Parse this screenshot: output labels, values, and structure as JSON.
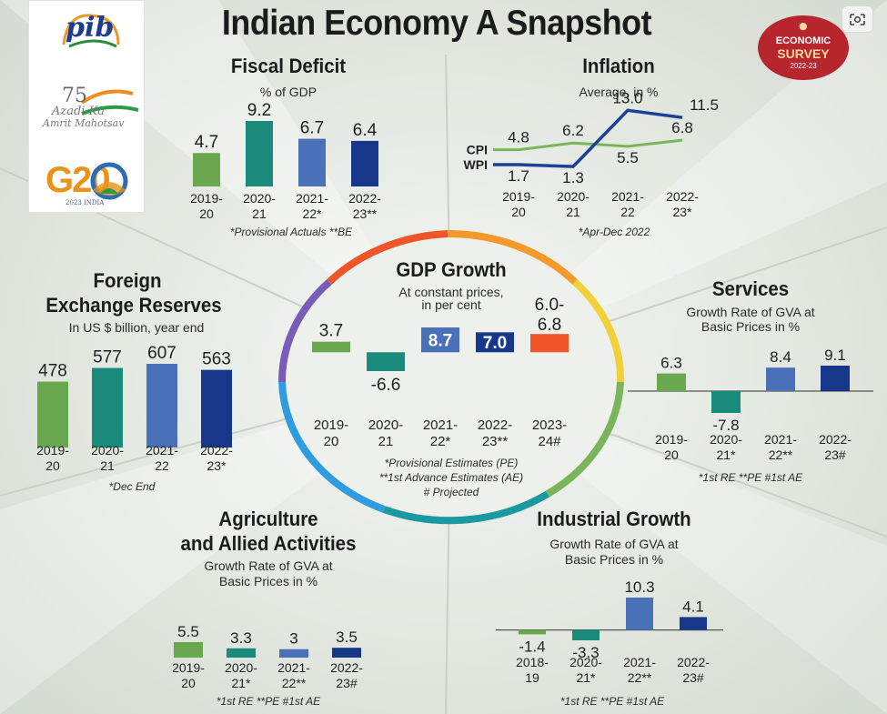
{
  "main_title": "Indian Economy A Snapshot",
  "logos": {
    "pib": "pib",
    "azadi_number": "75",
    "azadi_line1": "Azadi Ka",
    "azadi_line2": "Amrit Mahotsav",
    "g20": "G20",
    "g20_sub": "2023 INDIA"
  },
  "badge": {
    "line1": "ECONOMIC",
    "line2": "SURVEY",
    "line3": "2022-23"
  },
  "colors": {
    "green": "#6aa84f",
    "teal": "#1a8a7a",
    "blue": "#4a70b8",
    "navy": "#17378a",
    "orange": "#f0552a",
    "cpi_line": "#7ab55c",
    "wpi_line": "#1b3f9a"
  },
  "chart_data": [
    {
      "id": "fiscal",
      "type": "bar",
      "title": "Fiscal Deficit",
      "subtitle": "% of GDP",
      "categories": [
        "2019-20",
        "2020-21",
        "2021-22*",
        "2022-23**"
      ],
      "values": [
        4.7,
        9.2,
        6.7,
        6.4
      ],
      "footnote": "*Provisional Actuals **BE"
    },
    {
      "id": "inflation",
      "type": "line",
      "title": "Inflation",
      "subtitle": "Average, in %",
      "categories": [
        "2019-20",
        "2020-21",
        "2021-22",
        "2022-23*"
      ],
      "series": [
        {
          "name": "CPI",
          "values": [
            4.8,
            6.2,
            5.5,
            6.8
          ]
        },
        {
          "name": "WPI",
          "values": [
            1.7,
            1.3,
            13.0,
            11.5
          ]
        }
      ],
      "footnote": "*Apr-Dec 2022"
    },
    {
      "id": "forex",
      "type": "bar",
      "title": "Foreign Exchange Reserves",
      "title_line1": "Foreign",
      "title_line2": "Exchange Reserves",
      "subtitle": "In US $ billion, year end",
      "categories": [
        "2019-20",
        "2020-21",
        "2021-22",
        "2022-23*"
      ],
      "values": [
        478,
        577,
        607,
        563
      ],
      "footnote": "*Dec End"
    },
    {
      "id": "gdp",
      "type": "bar",
      "title": "GDP Growth",
      "subtitle_line1": "At constant prices,",
      "subtitle_line2": "in per cent",
      "categories": [
        "2019-20",
        "2020-21",
        "2021-22*",
        "2022-23**",
        "2023-24#"
      ],
      "values": [
        3.7,
        -6.6,
        8.7,
        7.0,
        6.4
      ],
      "value_labels": [
        "3.7",
        "-6.6",
        "8.7",
        "7.0",
        "6.0-6.8"
      ],
      "range_last": [
        6.0,
        6.8
      ],
      "footnote1": "*Provisional Estimates (PE)",
      "footnote2": "**1st Advance Estimates (AE)",
      "footnote3": "# Projected"
    },
    {
      "id": "services",
      "type": "bar",
      "title": "Services",
      "subtitle_line1": "Growth Rate of GVA at",
      "subtitle_line2": "Basic Prices in %",
      "categories": [
        "2019-20",
        "2020-21*",
        "2021-22**",
        "2022-23#"
      ],
      "values": [
        6.3,
        -7.8,
        8.4,
        9.1
      ],
      "footnote": "*1st RE **PE #1st AE"
    },
    {
      "id": "agriculture",
      "type": "bar",
      "title_line1": "Agriculture",
      "title_line2": "and Allied Activities",
      "subtitle_line1": "Growth Rate of GVA at",
      "subtitle_line2": "Basic Prices in %",
      "categories": [
        "2019-20",
        "2020-21*",
        "2021-22**",
        "2022-23#"
      ],
      "values": [
        5.5,
        3.3,
        3.0,
        3.5
      ],
      "footnote": "*1st RE **PE #1st AE"
    },
    {
      "id": "industrial",
      "type": "bar",
      "title": "Industrial Growth",
      "subtitle_line1": "Growth Rate of GVA at",
      "subtitle_line2": "Basic Prices in %",
      "categories": [
        "2018-19",
        "2020-21*",
        "2021-22**",
        "2022-23#"
      ],
      "values": [
        -1.4,
        -3.3,
        10.3,
        4.1
      ],
      "footnote": "*1st RE **PE #1st AE"
    }
  ]
}
